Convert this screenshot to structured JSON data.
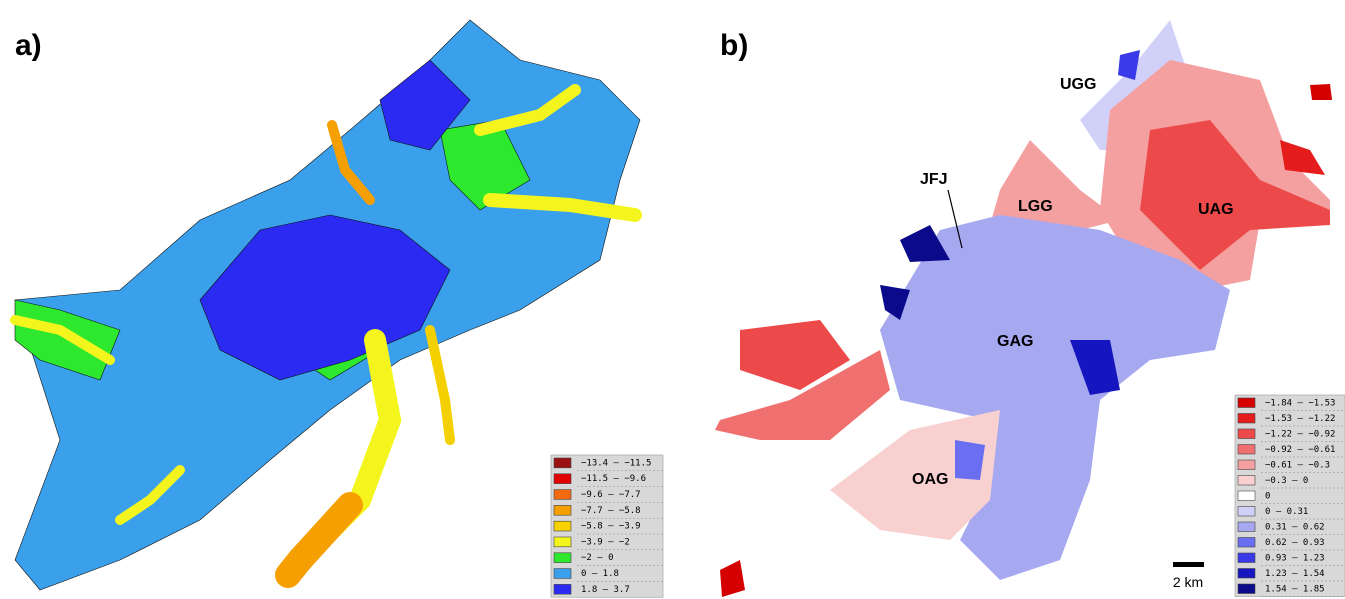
{
  "panel_a": {
    "label": "a)",
    "legend": [
      {
        "label": "−13.4 – −11.5",
        "color": "#9b1111"
      },
      {
        "label": "−11.5 – −9.6",
        "color": "#e00000"
      },
      {
        "label": "−9.6 – −7.7",
        "color": "#f26a10"
      },
      {
        "label": "−7.7 – −5.8",
        "color": "#f5a000"
      },
      {
        "label": "−5.8 – −3.9",
        "color": "#f8d200"
      },
      {
        "label": "−3.9 – −2",
        "color": "#f5f51e"
      },
      {
        "label": "−2 – 0",
        "color": "#2ee82e"
      },
      {
        "label": "0 – 1.8",
        "color": "#3aa0ec"
      },
      {
        "label": "1.8 – 3.7",
        "color": "#2a2af2"
      }
    ]
  },
  "panel_b": {
    "label": "b)",
    "glaciers": [
      {
        "label": "UGG"
      },
      {
        "label": "JFJ"
      },
      {
        "label": "LGG"
      },
      {
        "label": "UAG"
      },
      {
        "label": "GAG"
      },
      {
        "label": "OAG"
      }
    ],
    "scale_bar": "2 km",
    "legend": [
      {
        "label": "−1.84 – −1.53",
        "color": "#d40000"
      },
      {
        "label": "−1.53 – −1.22",
        "color": "#e41c1c"
      },
      {
        "label": "−1.22 – −0.92",
        "color": "#ec4a4a"
      },
      {
        "label": "−0.92 – −0.61",
        "color": "#f07070"
      },
      {
        "label": "−0.61 – −0.3",
        "color": "#f5a0a0"
      },
      {
        "label": "−0.3 – 0",
        "color": "#f9d0d0"
      },
      {
        "label": "0",
        "color": "#ffffff"
      },
      {
        "label": "0 – 0.31",
        "color": "#d0d0f8"
      },
      {
        "label": "0.31 – 0.62",
        "color": "#a6a8f0"
      },
      {
        "label": "0.62 – 0.93",
        "color": "#6a6ef0"
      },
      {
        "label": "0.93 – 1.23",
        "color": "#3a3ae8"
      },
      {
        "label": "1.23 – 1.54",
        "color": "#1616c0"
      },
      {
        "label": "1.54 – 1.85",
        "color": "#0a0a8a"
      }
    ]
  }
}
